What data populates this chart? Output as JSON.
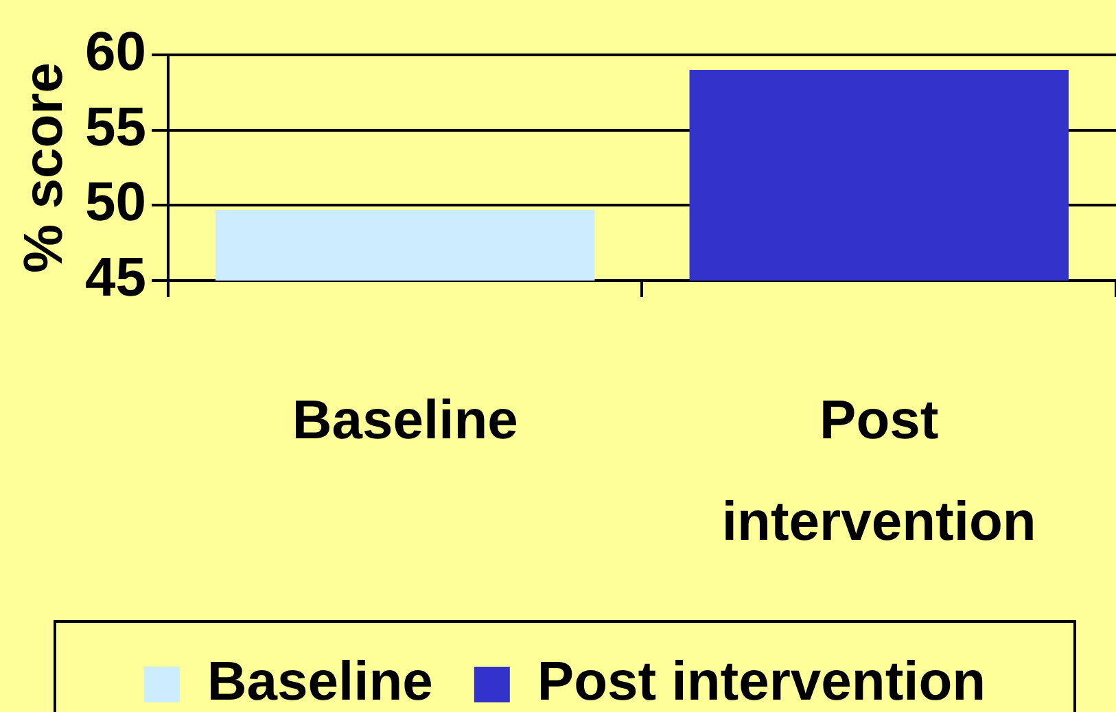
{
  "chart_data": {
    "type": "bar",
    "ylabel": "% score",
    "categories": [
      "Baseline",
      "Post intervention"
    ],
    "series": [
      {
        "name": "Baseline",
        "color": "#ccecff",
        "values": [
          49.7,
          null
        ]
      },
      {
        "name": "Post intervention",
        "color": "#3333cc",
        "values": [
          null,
          59
        ]
      }
    ],
    "ylim": [
      45,
      60
    ],
    "yticks": [
      45,
      50,
      55,
      60
    ],
    "grid": "y",
    "legend": "bottom"
  }
}
